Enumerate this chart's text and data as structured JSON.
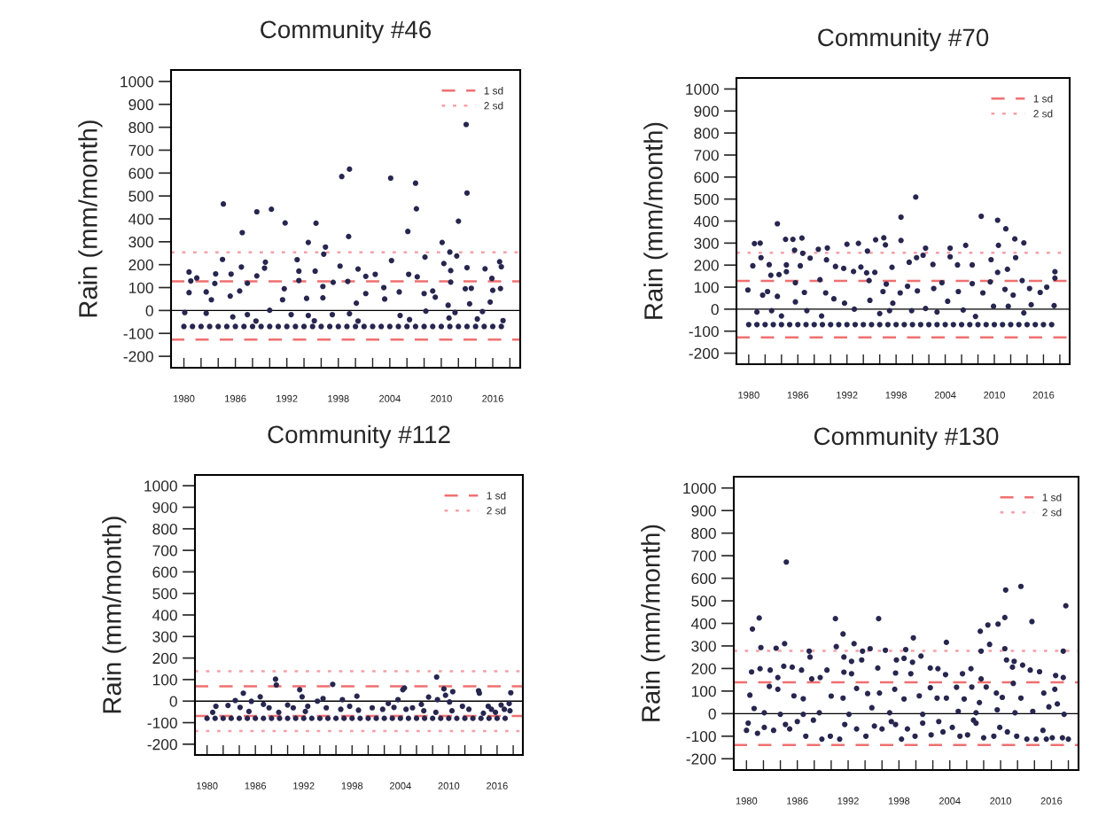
{
  "chart_data": [
    {
      "type": "scatter",
      "title": "Community #46",
      "ylabel": "Rain (mm/month)",
      "xlim": [
        1978.5,
        2019.2
      ],
      "ylim": [
        -250,
        1050
      ],
      "xticks": [
        {
          "value": 1980,
          "label": "1980"
        },
        {
          "value": 1982,
          "label": null
        },
        {
          "value": 1984,
          "label": null
        },
        {
          "value": 1986,
          "label": "1986"
        },
        {
          "value": 1988,
          "label": null
        },
        {
          "value": 1990,
          "label": null
        },
        {
          "value": 1992,
          "label": "1992"
        },
        {
          "value": 1994,
          "label": null
        },
        {
          "value": 1996,
          "label": null
        },
        {
          "value": 1998,
          "label": "1998"
        },
        {
          "value": 2000,
          "label": null
        },
        {
          "value": 2002,
          "label": null
        },
        {
          "value": 2004,
          "label": "2004"
        },
        {
          "value": 2006,
          "label": null
        },
        {
          "value": 2008,
          "label": null
        },
        {
          "value": 2010,
          "label": "2010"
        },
        {
          "value": 2012,
          "label": null
        },
        {
          "value": 2014,
          "label": null
        },
        {
          "value": 2016,
          "label": "2016"
        },
        {
          "value": 2018,
          "label": null
        }
      ],
      "yticks": [
        -200,
        -100,
        0,
        100,
        200,
        300,
        400,
        500,
        600,
        700,
        800,
        900,
        1000
      ],
      "marker": "circle",
      "legend": "top right",
      "grid": false,
      "ref_lines": [
        {
          "axis": "y",
          "value": 0,
          "color": "#000000",
          "line_style": "solid"
        },
        {
          "axis": "y",
          "value": 127,
          "label": "1 sd",
          "color": "#f07070",
          "line_style": "dashed"
        },
        {
          "axis": "y",
          "value": -127,
          "color": "#f07070",
          "line_style": "dashed"
        },
        {
          "axis": "y",
          "value": 254,
          "label": "2 sd",
          "color": "#f4a0a8",
          "line_style": "dotted"
        }
      ],
      "series": [
        {
          "color": "#27264f",
          "x": [
            2012.9,
            2013.0,
            1999.3,
            1998.4,
            2004.1,
            2007.0,
            2007.1,
            1984.6,
            1988.5,
            1990.2,
            1991.8,
            1995.4,
            1986.8,
            1999.2,
            2006.1,
            2012.0,
            2010.1,
            1994.5,
            1996.5,
            1996.3,
            2008.1,
            2011.0,
            2011.8,
            2016.8,
            2017.0,
            1984.5,
            1989.5,
            1993.2,
            2004.2,
            1980.6,
            1981.5,
            1983.7,
            1986.7,
            1988.5,
            1989.4,
            1993.4,
            1995.3,
            1998.2,
            2000.3,
            2001.2,
            2002.3,
            2006.2,
            2007.2,
            2011.1,
            2013.0,
            2015.1,
            1980.8,
            1983.6,
            1985.5,
            1987.4,
            1993.4,
            1997.4,
            1999.1,
            2011.1,
            2015.9,
            2016.0,
            2016.9,
            2012.8,
            2013.5,
            2010.3,
            2010.8,
            2009.0,
            2009.3,
            2008.0,
            2003.3,
            2005.1,
            2001.2,
            1996.2,
            1991.7,
            1986.5,
            1985.4,
            1980.6,
            1982.6,
            1983.2,
            1991.5,
            1994.3,
            1996.2,
            2000.1,
            2003.4,
            2013.3,
            2015.7,
            1980.1,
            1982.6,
            1987.4,
            1992.5,
            1994.5,
            1997.3,
            2008.2,
            2011.6,
            2014.8,
            2005.2,
            1999.3,
            1990.0,
            1985.7,
            2017.2,
            2014.2,
            1988.4,
            1995.2,
            2000.3,
            2006.3,
            2010.9
          ],
          "values": [
            812,
            513,
            617,
            585,
            578,
            556,
            444,
            465,
            431,
            442,
            382,
            381,
            340,
            323,
            345,
            390,
            297,
            297,
            277,
            246,
            233,
            255,
            238,
            213,
            191,
            223,
            211,
            222,
            218,
            168,
            142,
            160,
            190,
            151,
            185,
            172,
            172,
            194,
            181,
            149,
            158,
            158,
            147,
            174,
            187,
            182,
            129,
            118,
            159,
            119,
            131,
            123,
            127,
            124,
            140,
            88,
            96,
            95,
            97,
            205,
            23,
            85,
            58,
            74,
            100,
            81,
            74,
            105,
            95,
            85,
            63,
            78,
            81,
            47,
            47,
            53,
            55,
            32,
            50,
            29,
            37,
            -9,
            -12,
            -18,
            -18,
            -22,
            -18,
            -3,
            -9,
            -5,
            -22,
            -14,
            1,
            -28,
            -44,
            -37,
            -46,
            -45,
            -46,
            -40,
            -33
          ]
        },
        {
          "color": "#27264f",
          "x": [
            1980,
            1981,
            1982,
            1983,
            1984,
            1985,
            1986,
            1987,
            1988,
            1989,
            1990,
            1991,
            1992,
            1993,
            1994,
            1995,
            1996,
            1997,
            1998,
            1999,
            2000,
            2001,
            2002,
            2003,
            2004,
            2005,
            2006,
            2007,
            2008,
            2009,
            2010,
            2011,
            2012,
            2013,
            2014,
            2015,
            2016,
            2017
          ],
          "values": [
            -70,
            -70,
            -70,
            -70,
            -70,
            -70,
            -70,
            -70,
            -70,
            -70,
            -70,
            -70,
            -70,
            -70,
            -70,
            -70,
            -70,
            -70,
            -70,
            -70,
            -70,
            -70,
            -70,
            -70,
            -70,
            -70,
            -70,
            -70,
            -70,
            -70,
            -70,
            -70,
            -70,
            -70,
            -70,
            -70,
            -70,
            -70
          ]
        }
      ]
    },
    {
      "type": "scatter",
      "title": "Community #70",
      "ylabel": "Rain (mm/month)",
      "xlim": [
        1978.5,
        2019.2
      ],
      "ylim": [
        -250,
        1050
      ],
      "xticks": [
        {
          "value": 1980,
          "label": "1980"
        },
        {
          "value": 1982,
          "label": null
        },
        {
          "value": 1984,
          "label": null
        },
        {
          "value": 1986,
          "label": "1986"
        },
        {
          "value": 1988,
          "label": null
        },
        {
          "value": 1990,
          "label": null
        },
        {
          "value": 1992,
          "label": "1992"
        },
        {
          "value": 1994,
          "label": null
        },
        {
          "value": 1996,
          "label": null
        },
        {
          "value": 1998,
          "label": "1998"
        },
        {
          "value": 2000,
          "label": null
        },
        {
          "value": 2002,
          "label": null
        },
        {
          "value": 2004,
          "label": "2004"
        },
        {
          "value": 2006,
          "label": null
        },
        {
          "value": 2008,
          "label": null
        },
        {
          "value": 2010,
          "label": "2010"
        },
        {
          "value": 2012,
          "label": null
        },
        {
          "value": 2014,
          "label": null
        },
        {
          "value": 2016,
          "label": "2016"
        },
        {
          "value": 2018,
          "label": null
        }
      ],
      "yticks": [
        -200,
        -100,
        0,
        100,
        200,
        300,
        400,
        500,
        600,
        700,
        800,
        900,
        1000
      ],
      "marker": "circle",
      "legend": "top right",
      "grid": false,
      "ref_lines": [
        {
          "axis": "y",
          "value": 0,
          "color": "#000000",
          "line_style": "solid"
        },
        {
          "axis": "y",
          "value": 128,
          "label": "1 sd",
          "color": "#f07070",
          "line_style": "dashed"
        },
        {
          "axis": "y",
          "value": -128,
          "color": "#f07070",
          "line_style": "dashed"
        },
        {
          "axis": "y",
          "value": 256,
          "label": "2 sd",
          "color": "#f4a0a8",
          "line_style": "dotted"
        }
      ],
      "series": [
        {
          "color": "#27264f",
          "x": [
            2000.4,
            1998.6,
            2008.4,
            2010.4,
            2011.4,
            1983.5,
            2012.5,
            2013.6,
            1980.7,
            1981.4,
            1984.5,
            1985.4,
            1986.5,
            1996.5,
            1995.5,
            1998.6,
            1993.4,
            1992.0,
            2006.5,
            2010.5,
            2001.6,
            2004.6,
            1989.6,
            1988.5,
            1985.6,
            1986.6,
            1994.5,
            1996.7,
            1999.6,
            2001.3,
            2000.5,
            1981.5,
            1982.5,
            1980.5,
            1984.6,
            1984.6,
            1986.3,
            1987.5,
            1989.5,
            1990.6,
            1991.6,
            1992.8,
            1993.7,
            1994.4,
            1995.4,
            1997.5,
            2002.5,
            2004.6,
            2005.5,
            2007.3,
            2009.6,
            2010.4,
            2011.6,
            2012.6,
            2017.4,
            2017.4,
            1982.7,
            1983.7,
            1985.7,
            1988.7,
            1994.7,
            1996.8,
            1999.4,
            2003.6,
            2007.3,
            2009.5,
            2013.4,
            1979.9,
            1981.7,
            1982.3,
            1983.5,
            1985.7,
            1986.8,
            1989.4,
            1990.4,
            1991.7,
            1994.8,
            1996.4,
            1997.6,
            1998.5,
            2000.6,
            2002.6,
            2004.3,
            2005.6,
            2008.6,
            2011.3,
            2012.3,
            2014.3,
            2015.6,
            2016.4,
            2017.3,
            2014.5,
            2011.7,
            2009.9,
            2006.2,
            2003.0,
            2001.6,
            1999.9,
            1997.2,
            1992.9,
            1988.9,
            1987.1,
            1982.8,
            1981.0,
            1984.0,
            1996.0,
            2007.7,
            2013.6
          ],
          "values": [
            509,
            418,
            422,
            404,
            365,
            388,
            319,
            301,
            298,
            300,
            317,
            317,
            323,
            324,
            315,
            312,
            299,
            295,
            290,
            290,
            277,
            277,
            278,
            272,
            268,
            254,
            264,
            292,
            213,
            245,
            234,
            234,
            202,
            197,
            201,
            170,
            197,
            232,
            224,
            194,
            185,
            171,
            191,
            165,
            167,
            190,
            203,
            238,
            201,
            201,
            225,
            167,
            181,
            234,
            170,
            141,
            154,
            157,
            120,
            134,
            130,
            114,
            104,
            120,
            116,
            124,
            130,
            87,
            64,
            80,
            58,
            33,
            76,
            74,
            47,
            27,
            40,
            80,
            27,
            74,
            83,
            94,
            36,
            80,
            74,
            90,
            64,
            94,
            76,
            100,
            16,
            20,
            13,
            13,
            -4,
            -13,
            3,
            -7,
            -7,
            0,
            -31,
            -7,
            -7,
            -13,
            -31,
            -20,
            -33,
            -17
          ]
        },
        {
          "color": "#27264f",
          "x": [
            1980,
            1981,
            1982,
            1983,
            1984,
            1985,
            1986,
            1987,
            1988,
            1989,
            1990,
            1991,
            1992,
            1993,
            1994,
            1995,
            1996,
            1997,
            1998,
            1999,
            2000,
            2001,
            2002,
            2003,
            2004,
            2005,
            2006,
            2007,
            2008,
            2009,
            2010,
            2011,
            2012,
            2013,
            2014,
            2015,
            2016,
            2017
          ],
          "values": [
            -70,
            -70,
            -70,
            -70,
            -70,
            -70,
            -70,
            -70,
            -70,
            -70,
            -70,
            -70,
            -70,
            -70,
            -70,
            -70,
            -70,
            -70,
            -70,
            -70,
            -70,
            -70,
            -70,
            -70,
            -70,
            -70,
            -70,
            -70,
            -70,
            -70,
            -70,
            -70,
            -70,
            -70,
            -70,
            -70,
            -70,
            -70
          ]
        }
      ]
    },
    {
      "type": "scatter",
      "title": "Community #112",
      "ylabel": "Rain (mm/month)",
      "xlim": [
        1978.5,
        2019.2
      ],
      "ylim": [
        -250,
        1050
      ],
      "xticks": [
        {
          "value": 1980,
          "label": "1980"
        },
        {
          "value": 1982,
          "label": null
        },
        {
          "value": 1984,
          "label": null
        },
        {
          "value": 1986,
          "label": "1986"
        },
        {
          "value": 1988,
          "label": null
        },
        {
          "value": 1990,
          "label": null
        },
        {
          "value": 1992,
          "label": "1992"
        },
        {
          "value": 1994,
          "label": null
        },
        {
          "value": 1996,
          "label": null
        },
        {
          "value": 1998,
          "label": "1998"
        },
        {
          "value": 2000,
          "label": null
        },
        {
          "value": 2002,
          "label": null
        },
        {
          "value": 2004,
          "label": "2004"
        },
        {
          "value": 2006,
          "label": null
        },
        {
          "value": 2008,
          "label": null
        },
        {
          "value": 2010,
          "label": "2010"
        },
        {
          "value": 2012,
          "label": null
        },
        {
          "value": 2014,
          "label": null
        },
        {
          "value": 2016,
          "label": "2016"
        },
        {
          "value": 2018,
          "label": null
        }
      ],
      "yticks": [
        -200,
        -100,
        0,
        100,
        200,
        300,
        400,
        500,
        600,
        700,
        800,
        900,
        1000
      ],
      "marker": "circle",
      "legend": "top right",
      "grid": false,
      "ref_lines": [
        {
          "axis": "y",
          "value": 0,
          "color": "#000000",
          "line_style": "solid"
        },
        {
          "axis": "y",
          "value": 69,
          "label": "1 sd",
          "color": "#f07070",
          "line_style": "dashed"
        },
        {
          "axis": "y",
          "value": -69,
          "color": "#f07070",
          "line_style": "dashed"
        },
        {
          "axis": "y",
          "value": 139,
          "label": "2 sd",
          "color": "#f4a0a8",
          "line_style": "dotted"
        },
        {
          "axis": "y",
          "value": -139,
          "color": "#f4a0a8",
          "line_style": "dotted"
        }
      ],
      "series": [
        {
          "color": "#27264f",
          "x": [
            2008.5,
            1988.5,
            1988.6,
            1995.6,
            2004.5,
            2004.3,
            1991.5,
            2009.4,
            2010.5,
            2009.6,
            1984.5,
            2013.7,
            2013.8,
            2017.7,
            1991.8,
            1986.6,
            1994.4,
            1998.6,
            2007.5,
            2008.6,
            2003.7,
            1996.8,
            1983.5,
            1985.5,
            1993.7,
            2010.1,
            2006.6,
            2002.5,
            1981.1,
            1982.6,
            1984.1,
            1987.0,
            1987.7,
            1990.0,
            1990.7,
            1992.5,
            1994.8,
            1996.6,
            1997.7,
            1998.8,
            2000.5,
            2001.8,
            2003.2,
            2004.7,
            2005.5,
            2006.9,
            2008.4,
            2010.4,
            2011.7,
            2012.5,
            2014.9,
            2015.3,
            2016.5,
            2016.9,
            2017.5,
            1980.7,
            1985.2,
            1988.9,
            1992.2,
            2014.3,
            2015.8,
            2017.6
          ],
          "values": [
            112,
            102,
            75,
            78,
            61,
            53,
            53,
            57,
            44,
            27,
            37,
            48,
            37,
            39,
            20,
            20,
            12,
            23,
            19,
            7,
            7,
            7,
            3,
            -1,
            0,
            -4,
            -15,
            -11,
            -24,
            -20,
            -29,
            -15,
            -31,
            -18,
            -31,
            -24,
            -31,
            -38,
            -24,
            -42,
            -31,
            -38,
            -29,
            -38,
            -31,
            -45,
            -52,
            -45,
            -24,
            -38,
            -24,
            -38,
            -18,
            -38,
            -11,
            -52,
            -48,
            -52,
            -48,
            -56,
            -52,
            -45
          ]
        },
        {
          "color": "#27264f",
          "x": [
            1980,
            1981,
            1982,
            1983,
            1984,
            1985,
            1986,
            1987,
            1988,
            1989,
            1990,
            1991,
            1992,
            1993,
            1994,
            1995,
            1996,
            1997,
            1998,
            1999,
            2000,
            2001,
            2002,
            2003,
            2004,
            2005,
            2006,
            2007,
            2008,
            2009,
            2010,
            2011,
            2012,
            2013,
            2014,
            2015,
            2016,
            2017
          ],
          "values": [
            -80,
            -80,
            -80,
            -80,
            -80,
            -80,
            -80,
            -80,
            -80,
            -80,
            -80,
            -80,
            -80,
            -80,
            -80,
            -80,
            -80,
            -80,
            -80,
            -80,
            -80,
            -80,
            -80,
            -80,
            -80,
            -80,
            -80,
            -80,
            -80,
            -80,
            -80,
            -80,
            -80,
            -80,
            -80,
            -80,
            -80,
            -80
          ]
        }
      ]
    },
    {
      "type": "scatter",
      "title": "Community #130",
      "ylabel": "Rain (mm/month)",
      "xlim": [
        1978.5,
        2019.2
      ],
      "ylim": [
        -250,
        1050
      ],
      "xticks": [
        {
          "value": 1980,
          "label": "1980"
        },
        {
          "value": 1982,
          "label": null
        },
        {
          "value": 1984,
          "label": null
        },
        {
          "value": 1986,
          "label": "1986"
        },
        {
          "value": 1988,
          "label": null
        },
        {
          "value": 1990,
          "label": null
        },
        {
          "value": 1992,
          "label": "1992"
        },
        {
          "value": 1994,
          "label": null
        },
        {
          "value": 1996,
          "label": null
        },
        {
          "value": 1998,
          "label": "1998"
        },
        {
          "value": 2000,
          "label": null
        },
        {
          "value": 2002,
          "label": null
        },
        {
          "value": 2004,
          "label": "2004"
        },
        {
          "value": 2006,
          "label": null
        },
        {
          "value": 2008,
          "label": null
        },
        {
          "value": 2010,
          "label": "2010"
        },
        {
          "value": 2012,
          "label": null
        },
        {
          "value": 2014,
          "label": null
        },
        {
          "value": 2016,
          "label": "2016"
        },
        {
          "value": 2018,
          "label": null
        }
      ],
      "yticks": [
        -200,
        -100,
        0,
        100,
        200,
        300,
        400,
        500,
        600,
        700,
        800,
        900,
        1000
      ],
      "marker": "circle",
      "legend": "top right",
      "grid": false,
      "ref_lines": [
        {
          "axis": "y",
          "value": 0,
          "color": "#000000",
          "line_style": "solid"
        },
        {
          "axis": "y",
          "value": 139,
          "label": "1 sd",
          "color": "#f07070",
          "line_style": "dashed"
        },
        {
          "axis": "y",
          "value": -139,
          "color": "#f07070",
          "line_style": "dashed"
        },
        {
          "axis": "y",
          "value": 278,
          "label": "2 sd",
          "color": "#f4a0a8",
          "line_style": "dotted"
        }
      ],
      "series": [
        {
          "color": "#27264f",
          "x": [
            1984.7,
            2012.4,
            2010.6,
            2017.7,
            1980.7,
            1981.5,
            1990.5,
            1995.6,
            2013.7,
            2010.5,
            2008.5,
            2009.7,
            2007.6,
            1999.7,
            1991.4,
            2003.6,
            1981.7,
            1983.5,
            1984.5,
            1987.4,
            1990.6,
            1992.7,
            1993.7,
            1994.6,
            1996.4,
            1998.8,
            2008.7,
            2007.7,
            2010.5,
            2017.4,
            1987.5,
            1991.5,
            1992.4,
            1993.6,
            1997.7,
            1998.6,
            1999.6,
            2000.6,
            2010.7,
            2011.6,
            2012.6,
            2013.5,
            1980.6,
            1981.6,
            1982.8,
            1983.7,
            1984.4,
            1985.4,
            1986.5,
            1987.7,
            1988.7,
            1989.5,
            1991.5,
            1992.4,
            1995.5,
            1997.6,
            1999.4,
            2001.7,
            2002.6,
            2003.5,
            2005.5,
            2006.5,
            2007.7,
            2011.4,
            2014.6,
            2016.5,
            2017.4,
            1980.4,
            1982.7,
            1983.7,
            1985.6,
            1986.7,
            1990.0,
            1991.4,
            1993.0,
            1994.3,
            1995.7,
            1997.5,
            1998.6,
            2000.4,
            2001.7,
            2002.5,
            2003.6,
            2004.8,
            2005.7,
            2006.6,
            2007.5,
            2008.3,
            2009.5,
            2010.2,
            2011.5,
            2012.4,
            2015.1,
            2016.4,
            2015.7,
            2016.7,
            1980.9,
            1982.1,
            1984.0,
            1986.7,
            1988.6,
            1992.1,
            1994.8,
            1996.9,
            2000.8,
            2005.0,
            2007.1,
            2009.6,
            2011.7,
            2013.8,
            2017.5,
            1980.0,
            1980.2,
            1981.3,
            1982.1,
            1983.2,
            1984.6,
            1985.1,
            1986.0,
            1987.0,
            1987.9,
            1988.9,
            1989.9,
            1991.0,
            1991.6,
            1993.0,
            1994.1,
            1995.1,
            1996.0,
            1997.1,
            1998.3,
            1999.0,
            1999.9,
            2000.8,
            2001.8,
            2002.7,
            2003.2,
            2004.3,
            2005.2,
            2006.1,
            2007.1,
            2008.0,
            2009.2,
            2009.9,
            2010.8,
            2011.9,
            2013.1,
            2014.2,
            2015.0,
            2015.4,
            2016.1,
            2017.3,
            2018.0,
            2006.8,
            1997.6
          ],
          "values": [
            672,
            564,
            548,
            478,
            375,
            424,
            421,
            421,
            408,
            426,
            393,
            397,
            365,
            336,
            353,
            316,
            293,
            290,
            310,
            277,
            297,
            310,
            277,
            288,
            281,
            284,
            307,
            277,
            288,
            277,
            251,
            251,
            232,
            238,
            238,
            245,
            228,
            255,
            238,
            232,
            215,
            193,
            185,
            199,
            193,
            160,
            210,
            206,
            193,
            154,
            160,
            193,
            184,
            177,
            202,
            180,
            177,
            202,
            199,
            173,
            177,
            199,
            154,
            206,
            186,
            169,
            160,
            82,
            121,
            108,
            79,
            66,
            78,
            69,
            112,
            89,
            91,
            108,
            65,
            79,
            115,
            69,
            69,
            117,
            65,
            118,
            49,
            118,
            91,
            72,
            134,
            69,
            91,
            108,
            30,
            43,
            23,
            4,
            -3,
            -3,
            4,
            -3,
            26,
            4,
            -3,
            10,
            4,
            17,
            4,
            10,
            -3,
            -74,
            -42,
            -87,
            -61,
            -74,
            -48,
            -68,
            -35,
            -100,
            -29,
            -113,
            -100,
            -113,
            -48,
            -68,
            -100,
            -55,
            -68,
            -35,
            -113,
            -68,
            -100,
            -42,
            -94,
            -35,
            -81,
            -61,
            -100,
            -94,
            -42,
            -107,
            -100,
            -61,
            -81,
            -100,
            -113,
            -113,
            -74,
            -113,
            -107,
            -107,
            -113,
            -29,
            -48
          ]
        }
      ]
    }
  ]
}
